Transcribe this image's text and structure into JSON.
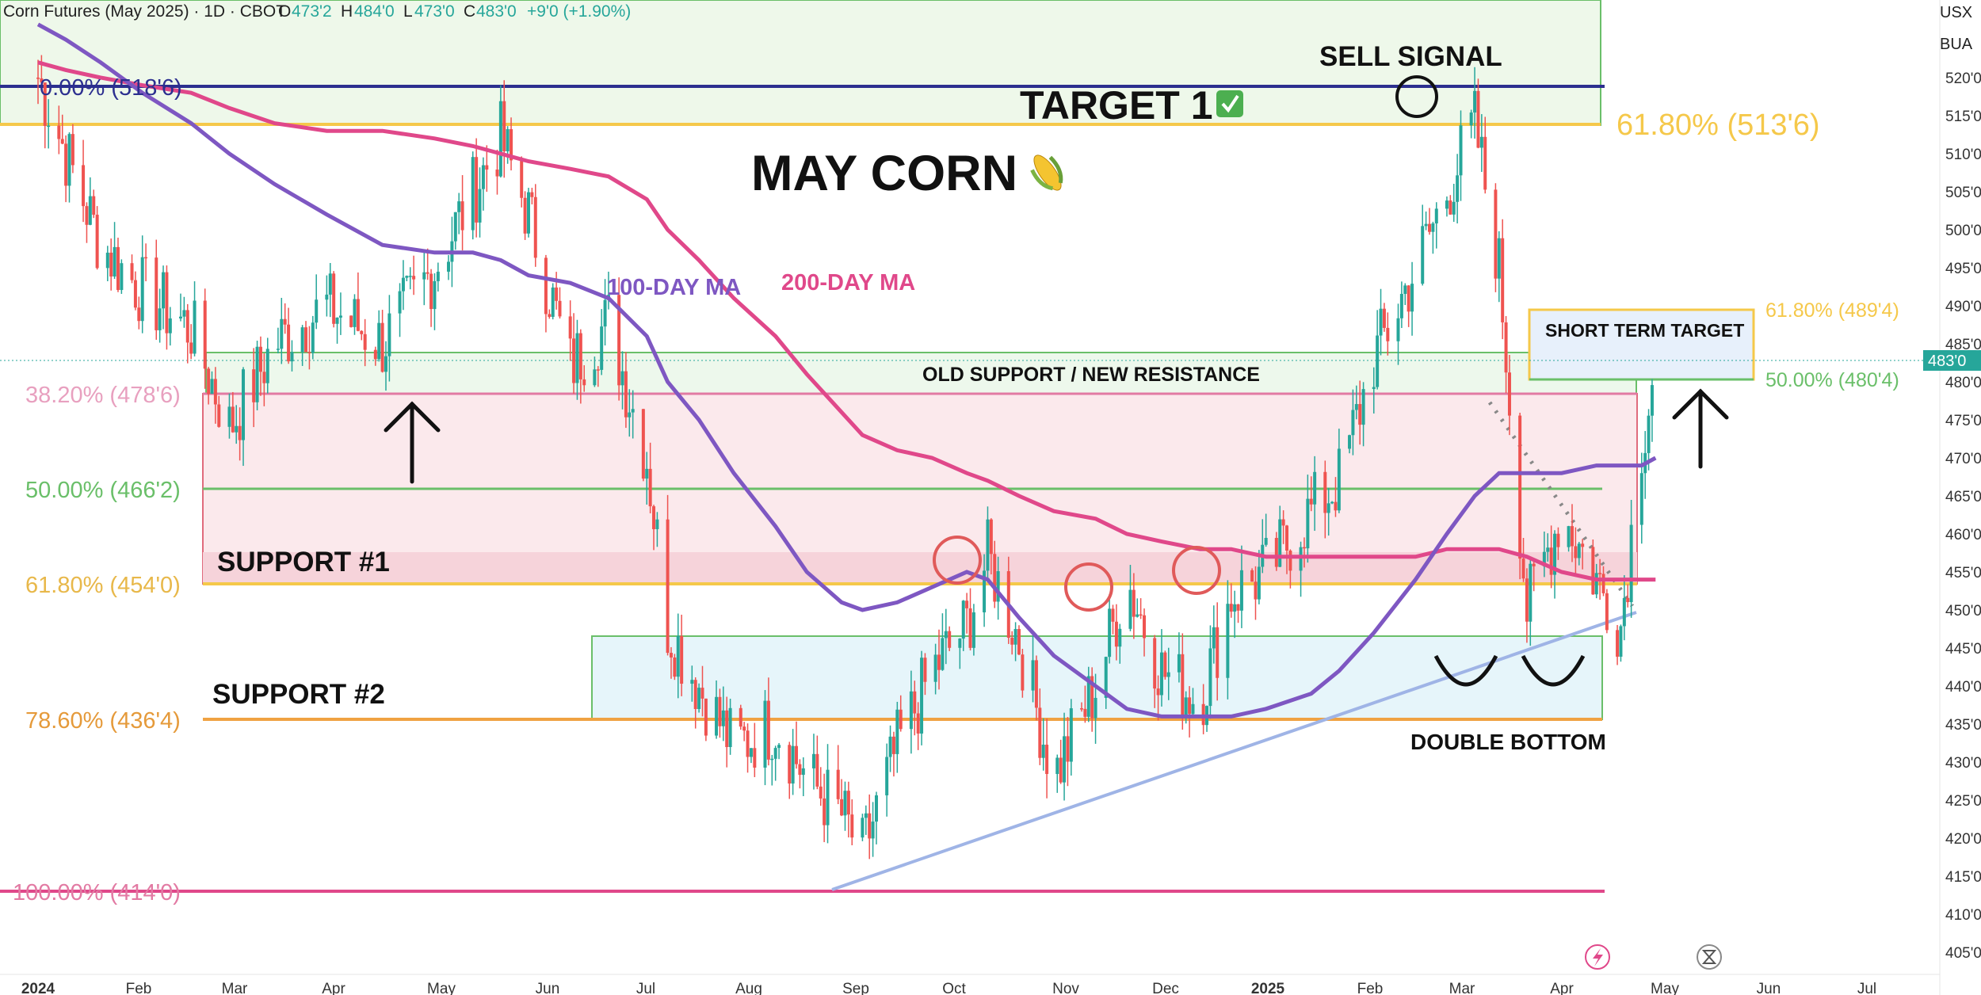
{
  "header": {
    "symbol": "Corn Futures (May 2025) · 1D · CBOT",
    "o_label": "O",
    "o_value": "473'2",
    "h_label": "H",
    "h_value": "484'0",
    "l_label": "L",
    "l_value": "473'0",
    "c_label": "C",
    "c_value": "483'0",
    "change": "+9'0 (+1.90%)"
  },
  "axis": {
    "currency": "USX",
    "unit": "BUA",
    "current_price": "483'0",
    "y_ticks": [
      "520'0",
      "515'0",
      "510'0",
      "505'0",
      "500'0",
      "495'0",
      "490'0",
      "485'0",
      "480'0",
      "475'0",
      "470'0",
      "465'0",
      "460'0",
      "455'0",
      "450'0",
      "445'0",
      "440'0",
      "435'0",
      "430'0",
      "425'0",
      "420'0",
      "415'0",
      "410'0",
      "405'0"
    ],
    "x_ticks": [
      "2024",
      "Feb",
      "Mar",
      "Apr",
      "May",
      "Jun",
      "Jul",
      "Aug",
      "Sep",
      "Oct",
      "Nov",
      "Dec",
      "2025",
      "Feb",
      "Mar",
      "Apr",
      "May",
      "Jun",
      "Jul"
    ]
  },
  "annotations": {
    "title": "MAY CORN",
    "target1": "TARGET 1",
    "sell_signal": "SELL SIGNAL",
    "ma100": "100-DAY MA",
    "ma200": "200-DAY MA",
    "old_support": "OLD SUPPORT / NEW RESISTANCE",
    "support1": "SUPPORT #1",
    "support2": "SUPPORT #2",
    "double_bottom": "DOUBLE BOTTOM",
    "short_term_target": "SHORT TERM TARGET"
  },
  "fib": {
    "f0": "0.00% (518'6)",
    "f382": "38.20% (478'6)",
    "f50": "50.00% (466'2)",
    "f618": "61.80% (454'0)",
    "f786": "78.60% (436'4)",
    "f100": "100.00% (414'0)",
    "big618": "61.80% (513'6)",
    "st618": "61.80% (489'4)",
    "st50": "50.00% (480'4)"
  },
  "colors": {
    "up": "#26a69a",
    "down": "#ef5350",
    "ma100": "#7e57c2",
    "ma200": "#e0488a",
    "fib_gold": "#f5c84a",
    "fib_green": "#6abf69",
    "fib_pink": "#e27aa3",
    "fib_orange": "#f0a242",
    "trend": "#9fb4e6"
  },
  "chart_data": {
    "type": "candlestick",
    "title": "MAY CORN",
    "ylim": [
      403,
      523
    ],
    "dates": [
      "2024-01-02",
      "2024-01-10",
      "2024-01-20",
      "2024-02-01",
      "2024-02-15",
      "2024-02-26",
      "2024-03-10",
      "2024-03-25",
      "2024-04-10",
      "2024-04-25",
      "2024-05-06",
      "2024-05-14",
      "2024-05-22",
      "2024-06-03",
      "2024-06-14",
      "2024-06-25",
      "2024-07-01",
      "2024-07-10",
      "2024-07-20",
      "2024-08-01",
      "2024-08-10",
      "2024-08-20",
      "2024-08-26",
      "2024-09-05",
      "2024-09-15",
      "2024-09-25",
      "2024-10-01",
      "2024-10-10",
      "2024-10-20",
      "2024-11-01",
      "2024-11-10",
      "2024-11-20",
      "2024-12-01",
      "2024-12-10",
      "2024-12-20",
      "2025-01-02",
      "2025-01-10",
      "2025-01-20",
      "2025-02-01",
      "2025-02-10",
      "2025-02-18",
      "2025-02-25",
      "2025-03-05",
      "2025-03-15",
      "2025-03-25",
      "2025-04-01",
      "2025-04-07",
      "2025-04-11"
    ],
    "close": [
      520,
      510,
      498,
      492,
      487,
      474,
      485,
      490,
      485,
      495,
      505,
      512,
      502,
      482,
      488,
      470,
      448,
      440,
      432,
      435,
      428,
      423,
      418,
      432,
      442,
      448,
      457,
      446,
      428,
      440,
      454,
      442,
      438,
      452,
      455,
      463,
      467,
      483,
      495,
      505,
      514,
      495,
      450,
      463,
      454,
      448,
      472,
      483
    ],
    "series": [
      {
        "name": "100-DAY MA",
        "values": [
          527,
          525,
          522,
          518,
          514,
          510,
          506,
          502,
          498,
          497,
          497,
          496,
          494,
          493,
          491,
          486,
          480,
          475,
          468,
          461,
          455,
          451,
          450,
          451,
          453,
          455,
          454,
          449,
          444,
          440,
          437,
          436,
          436,
          436,
          437,
          439,
          442,
          447,
          454,
          460,
          465,
          468,
          468,
          468,
          469,
          469,
          469,
          470
        ]
      },
      {
        "name": "200-DAY MA",
        "values": [
          522,
          521,
          520,
          519,
          518,
          516,
          514,
          513,
          513,
          512,
          511,
          510,
          509,
          508,
          507,
          504,
          500,
          496,
          491,
          486,
          481,
          476,
          473,
          471,
          470,
          468,
          467,
          465,
          463,
          462,
          460,
          459,
          458,
          458,
          457,
          457,
          457,
          457,
          457,
          458,
          458,
          458,
          457,
          455,
          454,
          454,
          454,
          454
        ]
      }
    ],
    "levels": [
      {
        "label": "0.00%",
        "value": 518.75
      },
      {
        "label": "38.20%",
        "value": 478.75
      },
      {
        "label": "50.00%",
        "value": 466.25
      },
      {
        "label": "61.80%",
        "value": 454.0
      },
      {
        "label": "78.60%",
        "value": 436.5
      },
      {
        "label": "100.00%",
        "value": 414.0
      },
      {
        "label": "61.80% (513'6)",
        "value": 513.75
      },
      {
        "label": "61.80% (489'4)",
        "value": 489.5
      },
      {
        "label": "50.00% (480'4)",
        "value": 480.5
      }
    ]
  }
}
